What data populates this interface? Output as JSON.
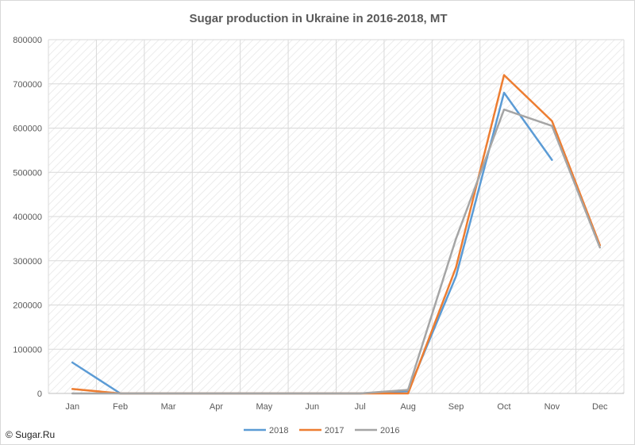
{
  "chart_data": {
    "type": "line",
    "title": "Sugar production in Ukraine in 2016-2018, MT",
    "xlabel": "",
    "ylabel": "",
    "categories": [
      "Jan",
      "Feb",
      "Mar",
      "Apr",
      "May",
      "Jun",
      "Jul",
      "Aug",
      "Sep",
      "Oct",
      "Nov",
      "Dec"
    ],
    "ylim": [
      0,
      800000
    ],
    "yticks": [
      0,
      100000,
      200000,
      300000,
      400000,
      500000,
      600000,
      700000,
      800000
    ],
    "ytick_labels": [
      "0",
      "100000",
      "200000",
      "300000",
      "400000",
      "500000",
      "600000",
      "700000",
      "800000"
    ],
    "grid": true,
    "legend_position": "bottom",
    "series": [
      {
        "name": "2018",
        "color": "#5B9BD5",
        "values": [
          70000,
          0,
          0,
          0,
          0,
          0,
          0,
          5000,
          265000,
          680000,
          528000,
          null
        ]
      },
      {
        "name": "2017",
        "color": "#ED7D31",
        "values": [
          10000,
          0,
          0,
          0,
          0,
          0,
          0,
          0,
          285000,
          720000,
          616000,
          335000
        ]
      },
      {
        "name": "2016",
        "color": "#A5A5A5",
        "values": [
          0,
          0,
          0,
          0,
          0,
          0,
          0,
          8000,
          350000,
          642000,
          605000,
          330000
        ]
      }
    ]
  },
  "footer": {
    "copyright": "© Sugar.Ru"
  }
}
